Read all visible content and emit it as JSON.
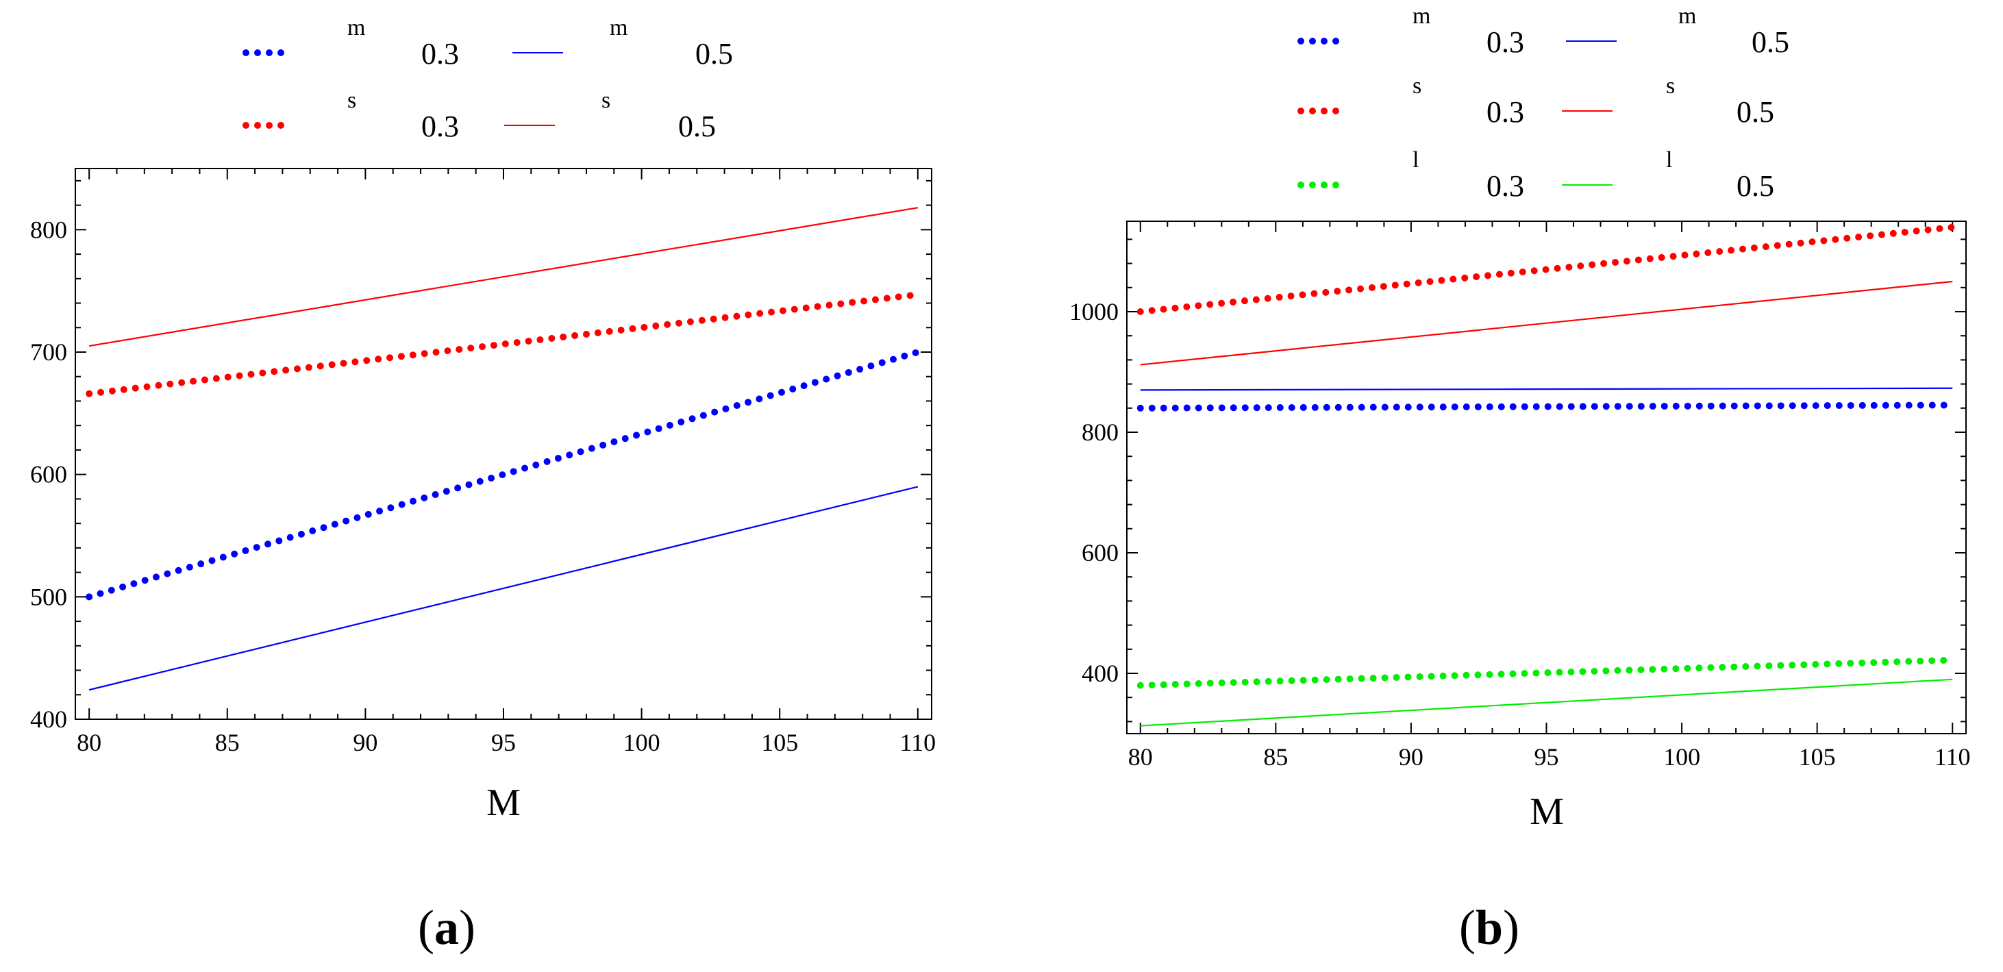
{
  "chart_data": [
    {
      "type": "line",
      "panel_label": "a",
      "xlabel": "M",
      "ylabel": "",
      "xlim": [
        79.5,
        110.5
      ],
      "ylim": [
        400,
        850
      ],
      "xticks": [
        80,
        85,
        90,
        95,
        100,
        105,
        110
      ],
      "yticks": [
        400,
        500,
        600,
        700,
        800
      ],
      "legend": [
        {
          "symbol": "m",
          "value": "0.3"
        },
        {
          "symbol": "m",
          "value": "0.5"
        },
        {
          "symbol": "s",
          "value": "0.3"
        },
        {
          "symbol": "s",
          "value": "0.5"
        }
      ],
      "series": [
        {
          "name": "m 0.3",
          "color": "#0000ff",
          "style": "dotted",
          "x": [
            80,
            110
          ],
          "y": [
            500,
            700
          ]
        },
        {
          "name": "m 0.5",
          "color": "#0000ff",
          "style": "solid",
          "x": [
            80,
            110
          ],
          "y": [
            424,
            590
          ]
        },
        {
          "name": "s 0.3",
          "color": "#ff0000",
          "style": "dotted",
          "x": [
            80,
            110
          ],
          "y": [
            666,
            747
          ]
        },
        {
          "name": "s 0.5",
          "color": "#ff0000",
          "style": "solid",
          "x": [
            80,
            110
          ],
          "y": [
            705,
            818
          ]
        }
      ]
    },
    {
      "type": "line",
      "panel_label": "b",
      "xlabel": "M",
      "ylabel": "",
      "xlim": [
        79.5,
        110.5
      ],
      "ylim": [
        300,
        1150
      ],
      "xticks": [
        80,
        85,
        90,
        95,
        100,
        105,
        110
      ],
      "yticks": [
        400,
        600,
        800,
        1000
      ],
      "legend": [
        {
          "symbol": "m",
          "value": "0.3"
        },
        {
          "symbol": "m",
          "value": "0.5"
        },
        {
          "symbol": "s",
          "value": "0.3"
        },
        {
          "symbol": "s",
          "value": "0.5"
        },
        {
          "symbol": "l",
          "value": "0.3"
        },
        {
          "symbol": "l",
          "value": "0.5"
        }
      ],
      "series": [
        {
          "name": "m 0.3",
          "color": "#0000ff",
          "style": "dotted",
          "x": [
            80,
            110
          ],
          "y": [
            840,
            845
          ]
        },
        {
          "name": "m 0.5",
          "color": "#0000ff",
          "style": "solid",
          "x": [
            80,
            110
          ],
          "y": [
            870,
            873
          ]
        },
        {
          "name": "s 0.3",
          "color": "#ff0000",
          "style": "dotted",
          "x": [
            80,
            110
          ],
          "y": [
            1000,
            1140
          ]
        },
        {
          "name": "s 0.5",
          "color": "#ff0000",
          "style": "solid",
          "x": [
            80,
            110
          ],
          "y": [
            912,
            1050
          ]
        },
        {
          "name": "l 0.3",
          "color": "#00ee00",
          "style": "dotted",
          "x": [
            80,
            110
          ],
          "y": [
            380,
            422
          ]
        },
        {
          "name": "l 0.5",
          "color": "#00ee00",
          "style": "solid",
          "x": [
            80,
            110
          ],
          "y": [
            313,
            390
          ]
        }
      ]
    }
  ]
}
